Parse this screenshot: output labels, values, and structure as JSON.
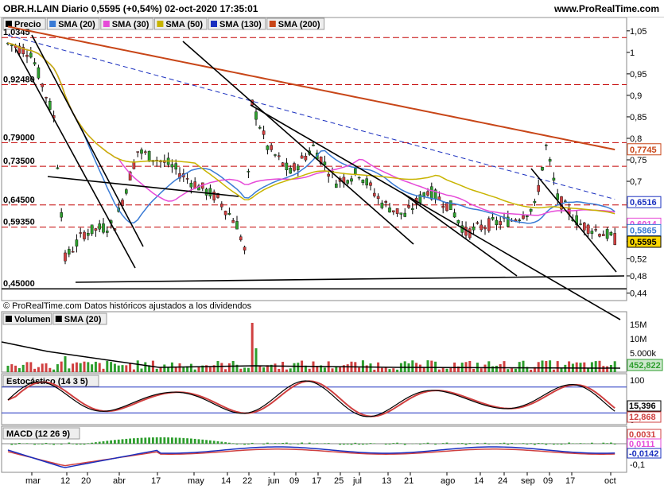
{
  "header": {
    "title": "OBR.H.LAIN Diario 0,5595 (+0,54%) 02-oct-2020 17:35:01",
    "site": "www.ProRealTime.com"
  },
  "price_panel": {
    "legend": [
      {
        "label": "Precio",
        "color": "#000000"
      },
      {
        "label": "SMA (20)",
        "color": "#3a7bd5"
      },
      {
        "label": "SMA (30)",
        "color": "#e64ad8"
      },
      {
        "label": "SMA (50)",
        "color": "#c8b400"
      },
      {
        "label": "SMA (130)",
        "color": "#1a2fbf"
      },
      {
        "label": "SMA (200)",
        "color": "#c84618"
      }
    ],
    "left_labels": [
      "1,0345",
      "0,92480",
      "0,79000",
      "0,73500",
      "0,64500",
      "0,59350",
      "0,45000"
    ],
    "right_ticks": [
      "1,05",
      "1",
      "0,95",
      "0,9",
      "0,85",
      "0,8",
      "0,75",
      "0,7",
      "0,65",
      "0,6",
      "0,56",
      "0,52",
      "0,48",
      "0,44"
    ],
    "right_badges": [
      {
        "value": "0,7745",
        "color": "#c84618"
      },
      {
        "value": "0,6516",
        "color": "#1a2fbf"
      },
      {
        "value": "0,6014",
        "color": "#e64ad8"
      },
      {
        "value": "0,5865",
        "color": "#3a7bd5"
      },
      {
        "value": "0,5595",
        "color": "#000000"
      }
    ],
    "footnote": "© ProRealTime.com Datos históricos ajustados a los dividendos"
  },
  "volume_panel": {
    "legend": [
      {
        "label": "Volumen",
        "color": "#000000"
      },
      {
        "label": "SMA (20)",
        "color": "#000000"
      }
    ],
    "right_ticks": [
      "15M",
      "10M",
      "5.000k"
    ],
    "badge": "452,822"
  },
  "stoch_panel": {
    "legend": "Estocástico (14 3 5)",
    "right_ticks": [
      "100",
      "0"
    ],
    "badges": [
      "15,396",
      "12,868"
    ]
  },
  "macd_panel": {
    "legend": "MACD (12 26 9)",
    "right_ticks": [
      "0",
      "-0,1"
    ],
    "badges": [
      "0,0031",
      "0,0111",
      "-0,0142"
    ]
  },
  "x_axis": [
    "mar",
    "12",
    "20",
    "abr",
    "17",
    "may",
    "14",
    "22",
    "jun",
    "09",
    "17",
    "25",
    "jul",
    "13",
    "21",
    "ago",
    "14",
    "24",
    "sep",
    "09",
    "17",
    "oct"
  ],
  "chart_data": {
    "type": "candlestick",
    "title": "OBR.H.LAIN Diario",
    "y_range": [
      0.43,
      1.07
    ],
    "horizontal_levels": [
      1.0345,
      0.9248,
      0.79,
      0.735,
      0.645,
      0.5935,
      0.45
    ],
    "last_close": 0.5595,
    "change_percent": 0.54,
    "sma": {
      "sma20": 0.5865,
      "sma30": 0.6014,
      "sma50": 0.6014,
      "sma130": 0.6516,
      "sma200": 0.7745
    },
    "volume_last": 452822,
    "stochastic": {
      "k": 15.396,
      "d": 12.868
    },
    "macd": {
      "values": [
        0.0031,
        0.0111,
        -0.0142
      ]
    }
  }
}
